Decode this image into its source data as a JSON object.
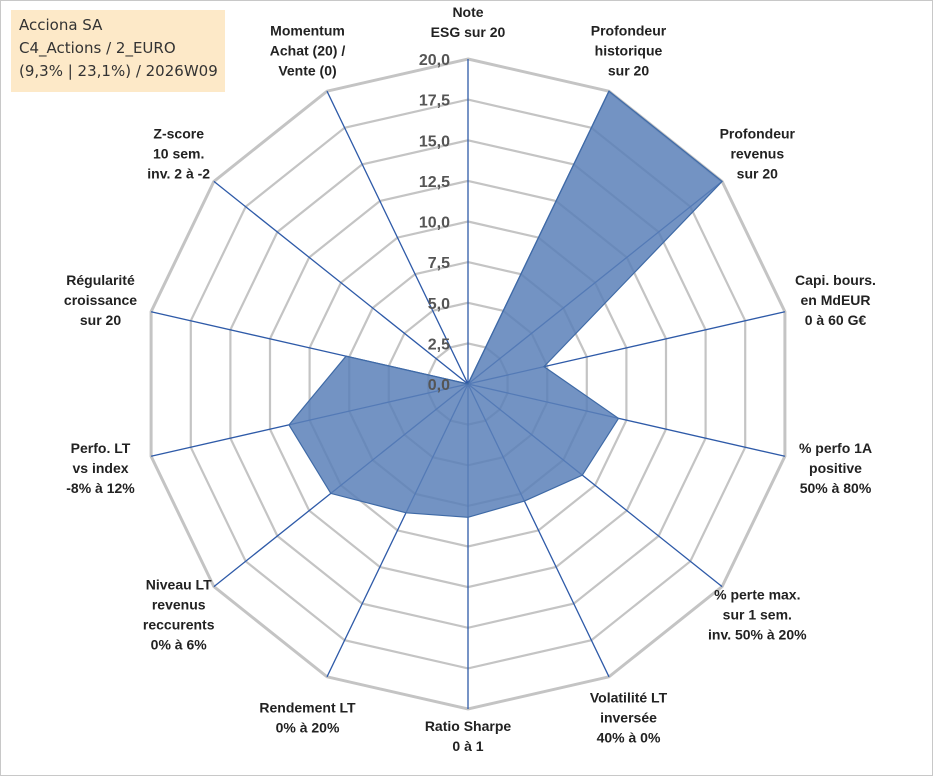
{
  "info": {
    "line1": "Acciona SA",
    "line2": "C4_Actions / 2_EURO",
    "line3": "(9,3% | 23,1%) / 2026W09"
  },
  "chart_data": {
    "type": "radar",
    "title": "",
    "r_max": 20,
    "tick_values": [
      0,
      2.5,
      5,
      7.5,
      10,
      12.5,
      15,
      17.5,
      20
    ],
    "tick_labels": [
      "0,0",
      "2,5",
      "5,0",
      "7,5",
      "10,0",
      "12,5",
      "15,0",
      "17,5",
      "20,0"
    ],
    "axes": [
      {
        "label": [
          "Note",
          "ESG sur 20"
        ],
        "value": 0
      },
      {
        "label": [
          "Profondeur",
          "historique",
          "sur 20"
        ],
        "value": 20
      },
      {
        "label": [
          "Profondeur",
          "revenus",
          "sur 20"
        ],
        "value": 20
      },
      {
        "label": [
          "Capi. bours.",
          "en MdEUR",
          "0 à 60 G€"
        ],
        "value": 4.8
      },
      {
        "label": [
          "% perfo 1A",
          "positive",
          "50% à 80%"
        ],
        "value": 9.5
      },
      {
        "label": [
          "% perte max.",
          "sur 1 sem.",
          "inv. 50% à 20%"
        ],
        "value": 9.0
      },
      {
        "label": [
          "Volatilité LT",
          "inversée",
          "40% à 0%"
        ],
        "value": 8.0
      },
      {
        "label": [
          "Ratio Sharpe",
          "0 à 1"
        ],
        "value": 8.2
      },
      {
        "label": [
          "Rendement LT",
          "0% à 20%"
        ],
        "value": 8.8
      },
      {
        "label": [
          "Niveau LT",
          "revenus",
          "reccurents",
          "0% à 6%"
        ],
        "value": 10.8
      },
      {
        "label": [
          "Perfo. LT",
          "vs index",
          "-8% à 12%"
        ],
        "value": 11.3
      },
      {
        "label": [
          "Régularité",
          "croissance",
          "sur 20"
        ],
        "value": 7.7
      },
      {
        "label": [
          "Z-score",
          "10 sem.",
          "inv. 2 à -2"
        ],
        "value": 0
      },
      {
        "label": [
          "Momentum",
          "Achat (20) /",
          "Vente (0)"
        ],
        "value": 0
      }
    ],
    "colors": {
      "fill": "#5b80b8",
      "stroke": "#3f6aa6",
      "axis": "#2e5aa8",
      "grid": "#c4c4c4"
    }
  }
}
